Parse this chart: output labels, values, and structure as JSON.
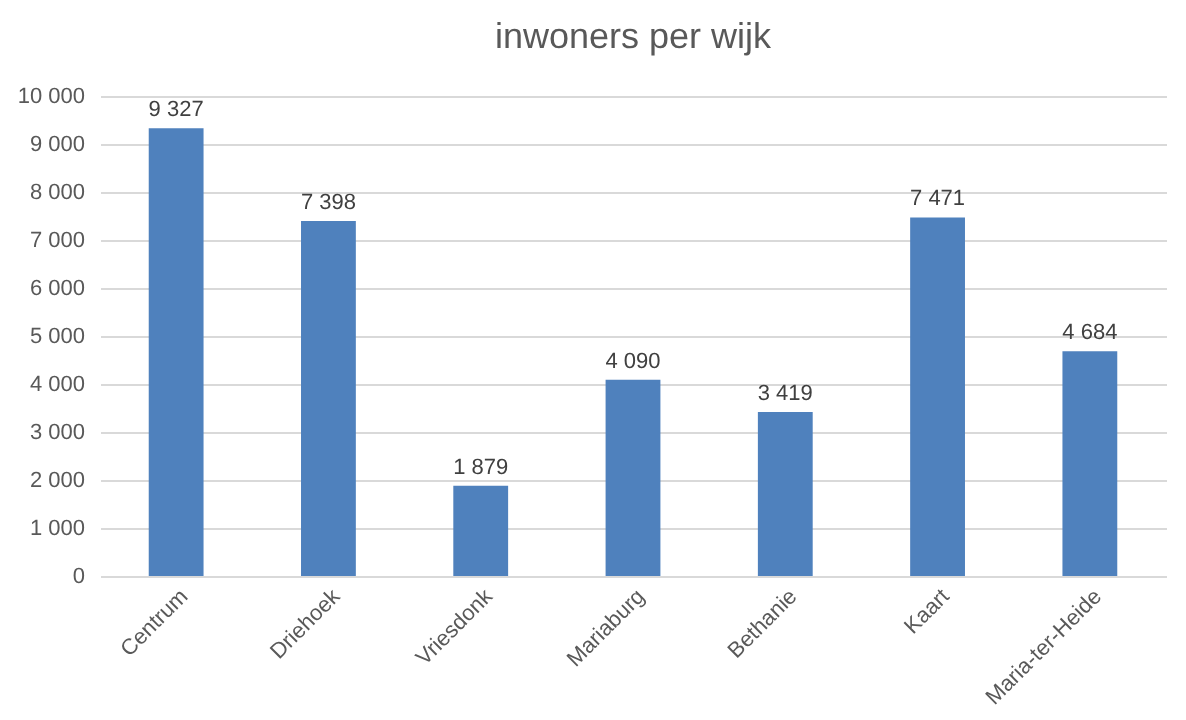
{
  "chart_data": {
    "type": "bar",
    "title": "inwoners per wijk",
    "categories": [
      "Centrum",
      "Driehoek",
      "Vriesdonk",
      "Mariaburg",
      "Bethanie",
      "Kaart",
      "Maria-ter-Heide"
    ],
    "values": [
      9327,
      7398,
      1879,
      4090,
      3419,
      7471,
      4684
    ],
    "value_labels": [
      "9 327",
      "7 398",
      "1 879",
      "4 090",
      "3 419",
      "7 471",
      "4 684"
    ],
    "color": "#4f81bd",
    "ylim": [
      0,
      10000
    ],
    "yticks": [
      0,
      {
        "value": 1000,
        "label": "1 000"
      },
      {
        "value": 2000,
        "label": "2 000"
      },
      {
        "value": 3000,
        "label": "3 000"
      },
      {
        "value": 4000,
        "label": "4 000"
      },
      {
        "value": 5000,
        "label": "5 000"
      },
      {
        "value": 6000,
        "label": "6 000"
      },
      {
        "value": 7000,
        "label": "7 000"
      },
      {
        "value": 8000,
        "label": "8 000"
      },
      {
        "value": 9000,
        "label": "9 000"
      },
      {
        "value": 10000,
        "label": "10 000"
      }
    ],
    "grid": "y"
  }
}
